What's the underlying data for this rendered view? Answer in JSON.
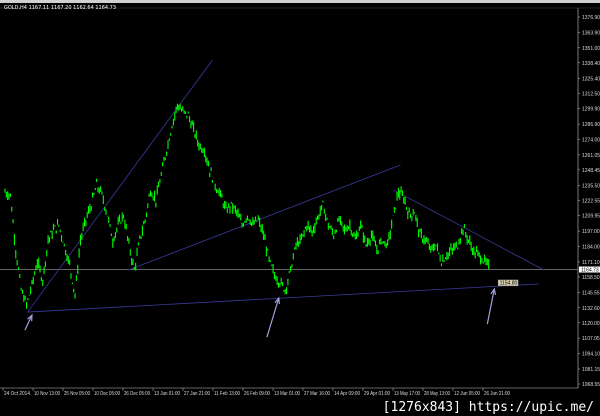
{
  "window": {
    "title": "GOLD,H4  1167.11 1167.20 1162.64 1164.73",
    "watermark": "[1276x843] https://upic.me/"
  },
  "colors": {
    "background": "#000000",
    "bars": "#00ff00",
    "trendline": "#3a3aa0",
    "arrow": "#a0a0e0",
    "axis": "#c8c8c8",
    "price_line": "#a0a0a0"
  },
  "chart_data": {
    "type": "line",
    "symbol": "GOLD",
    "timeframe": "H4",
    "ylim": [
      1068.55,
      1376.9
    ],
    "y_ticks": [
      "1376.90",
      "1363.90",
      "1351.00",
      "1338.40",
      "1325.40",
      "1312.50",
      "1299.90",
      "1286.90",
      "1274.00",
      "1261.05",
      "1248.45",
      "1235.50",
      "1222.55",
      "1209.95",
      "1197.00",
      "1184.00",
      "1171.10",
      "1158.50",
      "1145.55",
      "1132.60",
      "1120.00",
      "1107.05",
      "1094.10",
      "1081.15",
      "1068.55"
    ],
    "x_ticks": [
      "24 Oct 2014",
      "10 Nov 13:00",
      "25 Nov 05:00",
      "10 Dec 05:00",
      "26 Dec 05:00",
      "13 Jan 01:00",
      "27 Jan 21:00",
      "11 Feb 13:00",
      "26 Feb 09:00",
      "13 Mar 01:00",
      "27 Mar 16:00",
      "14 Apr 09:00",
      "29 Apr 01:00",
      "13 May 17:00",
      "28 May 13:00",
      "12 Jun 05:00",
      "26 Jun 21:00"
    ],
    "current_price": "1164.73",
    "marker_label": "1154.80",
    "close": [
      1229.9,
      1227.3,
      1181.1,
      1147.5,
      1134.9,
      1151.7,
      1171.1,
      1156.0,
      1189.5,
      1197.9,
      1202.1,
      1185.3,
      1168.5,
      1143.3,
      1189.5,
      1206.3,
      1218.9,
      1235.7,
      1227.3,
      1210.5,
      1189.5,
      1202.1,
      1210.5,
      1185.3,
      1164.3,
      1189.5,
      1206.3,
      1231.5,
      1223.1,
      1244.1,
      1265.2,
      1286.1,
      1303.0,
      1297.1,
      1294.6,
      1282.0,
      1269.4,
      1265.2,
      1248.3,
      1235.7,
      1227.3,
      1214.7,
      1218.9,
      1213.1,
      1202.1,
      1210.5,
      1202.1,
      1206.3,
      1193.7,
      1172.7,
      1160.1,
      1154.2,
      1147.5,
      1164.3,
      1185.3,
      1189.5,
      1202.1,
      1196.3,
      1208.0,
      1218.9,
      1202.1,
      1193.7,
      1206.3,
      1197.9,
      1202.1,
      1189.5,
      1202.1,
      1185.3,
      1193.7,
      1181.1,
      1189.5,
      1185.3,
      1208.0,
      1229.9,
      1224.8,
      1210.5,
      1213.1,
      1193.7,
      1189.5,
      1181.1,
      1185.3,
      1171.1,
      1177.0,
      1181.1,
      1185.3,
      1199.6,
      1189.5,
      1179.4,
      1177.0,
      1171.1,
      1166.0
    ],
    "trendlines": [
      {
        "from": [
          4.2,
          1129.0
        ],
        "to": [
          38.5,
          1340.8
        ]
      },
      {
        "from": [
          4.2,
          1129.0
        ],
        "to": [
          99.1,
          1152.6
        ]
      },
      {
        "from": [
          22.9,
          1164.3
        ],
        "to": [
          73.4,
          1252.6
        ]
      },
      {
        "from": [
          72.1,
          1231.5
        ],
        "to": [
          100.0,
          1164.3
        ]
      }
    ],
    "arrows": [
      {
        "from": [
          3.7,
          1113.8
        ],
        "to": [
          5.0,
          1126.4
        ]
      },
      {
        "from": [
          48.6,
          1107.9
        ],
        "to": [
          50.8,
          1140.7
        ]
      },
      {
        "from": [
          89.5,
          1118.9
        ],
        "to": [
          90.8,
          1148.4
        ]
      }
    ]
  }
}
